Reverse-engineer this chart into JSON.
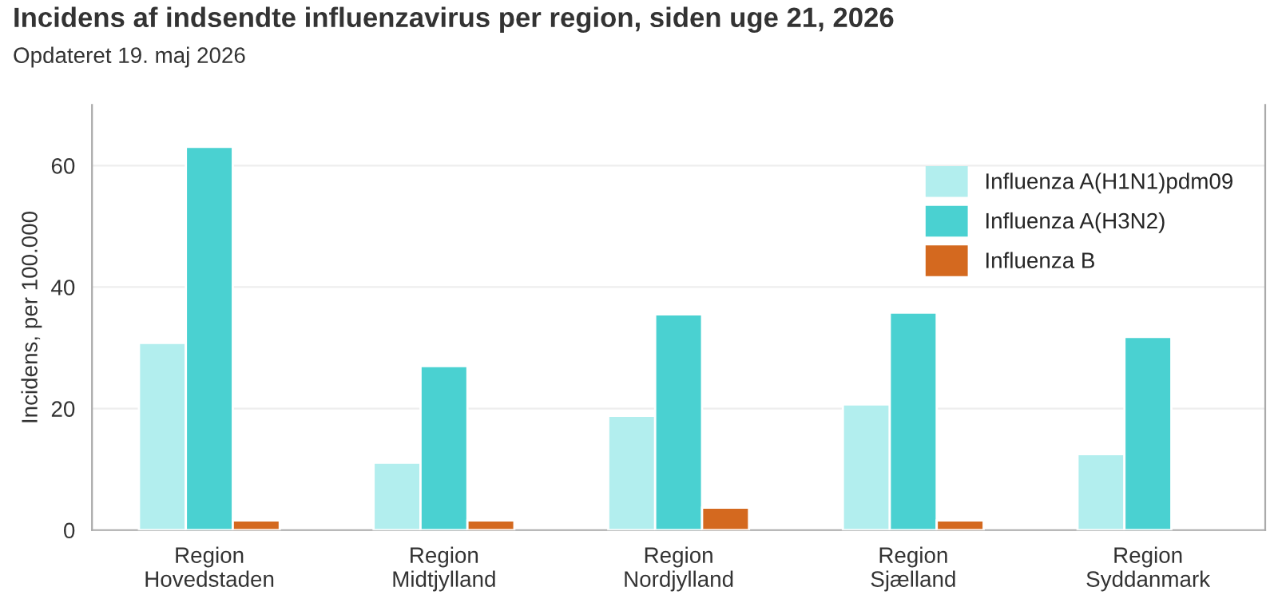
{
  "chart_data": {
    "type": "bar",
    "title": "Incidens af indsendte influenzavirus per region, siden uge 21, 2026",
    "subtitle": "Opdateret 19. maj 2026",
    "ylabel": "Incidens, per 100.000",
    "categories": [
      "Region\nHovedstaden",
      "Region\nMidtjylland",
      "Region\nNordjylland",
      "Region\nSjælland",
      "Region\nSyddanmark"
    ],
    "series": [
      {
        "name": "Influenza A(H1N1)pdm09",
        "color": "#b2eeee",
        "values": [
          30.8,
          11.1,
          18.8,
          20.7,
          12.5
        ]
      },
      {
        "name": "Influenza A(H3N2)",
        "color": "#4ad1d1",
        "values": [
          63.1,
          27.0,
          35.5,
          35.8,
          31.8
        ]
      },
      {
        "name": "Influenza B",
        "color": "#d4691f",
        "values": [
          1.6,
          1.6,
          3.7,
          1.6,
          null
        ]
      }
    ],
    "ylim": [
      0,
      70
    ],
    "yticks": [
      0,
      20,
      40,
      60
    ],
    "grid": "y",
    "legend": "top right"
  }
}
